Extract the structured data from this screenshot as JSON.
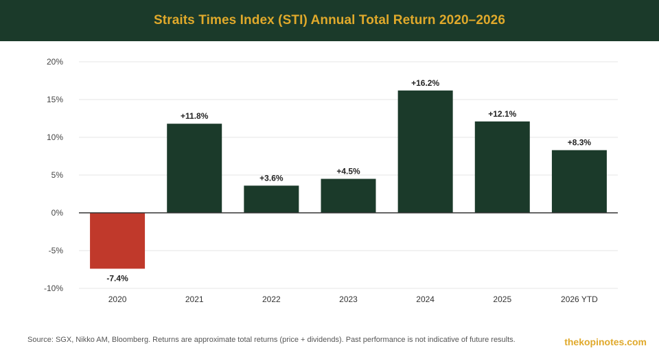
{
  "header": {
    "title": "Straits Times Index (STI) Annual Total Return 2020–2026"
  },
  "colors": {
    "header_bg": "#1b3a2a",
    "title": "#e0a92b",
    "positive": "#1b3a2a",
    "negative": "#c0392b"
  },
  "chart_data": {
    "type": "bar",
    "categories": [
      "2020",
      "2021",
      "2022",
      "2023",
      "2024",
      "2025",
      "2026 YTD"
    ],
    "values": [
      -7.4,
      11.8,
      3.6,
      4.5,
      16.2,
      12.1,
      8.3
    ],
    "data_labels": [
      "-7.4%",
      "+11.8%",
      "+3.6%",
      "+4.5%",
      "+16.2%",
      "+12.1%",
      "+8.3%"
    ],
    "ylim": [
      -10,
      20
    ],
    "yticks": [
      -10,
      -5,
      0,
      5,
      10,
      15,
      20
    ],
    "ytick_labels": [
      "-10%",
      "-5%",
      "0%",
      "5%",
      "10%",
      "15%",
      "20%"
    ],
    "xlabel": "",
    "ylabel": "",
    "grid": true
  },
  "footer": {
    "source": "Source: SGX, Nikko AM, Bloomberg. Returns are approximate total returns (price + dividends). Past performance is not indicative of future results.",
    "brand": "thekopinotes.com"
  }
}
